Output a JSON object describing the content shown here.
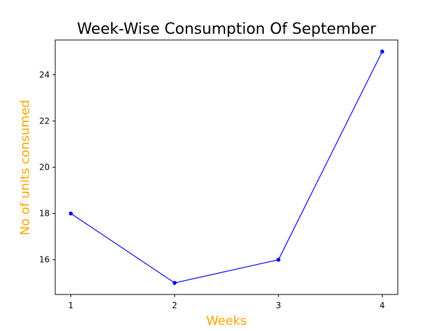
{
  "chart_data": {
    "type": "line",
    "title": "Week-Wise Consumption Of September",
    "xlabel": "Weeks",
    "ylabel": "No of units consumed",
    "x": [
      1,
      2,
      3,
      4
    ],
    "x_tick_labels": [
      "1",
      "2",
      "3",
      "4"
    ],
    "y_ticks": [
      16,
      18,
      20,
      22,
      24
    ],
    "y_tick_labels": [
      "16",
      "18",
      "20",
      "22",
      "24"
    ],
    "xlim": [
      0.85,
      4.15
    ],
    "ylim": [
      14.5,
      25.5
    ],
    "grid": false,
    "series": [
      {
        "values": [
          18,
          15,
          16,
          25
        ],
        "color": "#0000ff",
        "marker": "circle"
      }
    ],
    "label_color": "#ffa500",
    "title_color": "#000000",
    "axis_color": "#000000"
  }
}
